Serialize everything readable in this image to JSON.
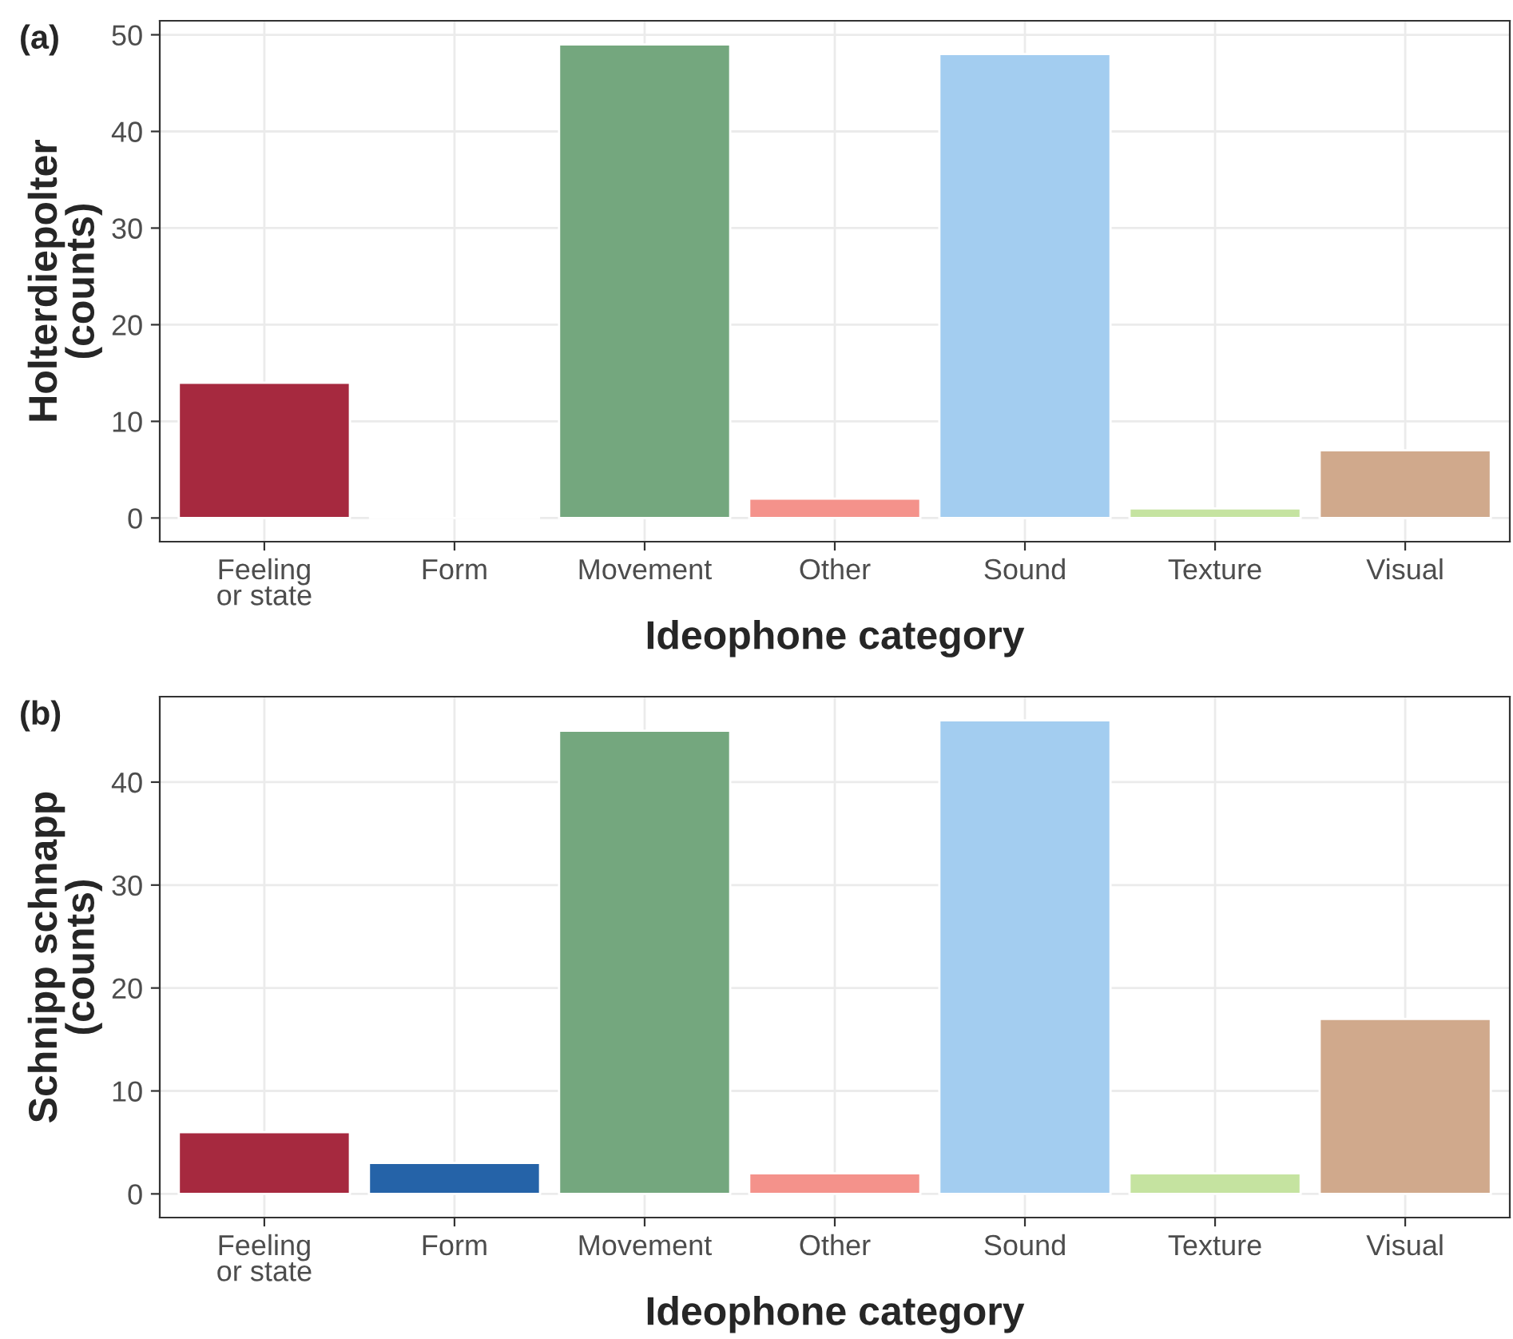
{
  "chart_data": [
    {
      "type": "bar",
      "categories": [
        "Feeling\nor state",
        "Form",
        "Movement",
        "Other",
        "Sound",
        "Texture",
        "Visual"
      ],
      "values": [
        14,
        0,
        49,
        2,
        48,
        1,
        7
      ],
      "colors": [
        "#a6293f",
        null,
        "#74a77e",
        "#f4928b",
        "#a3cdf0",
        "#c5e3a0",
        "#d0a98c"
      ],
      "xlabel": "Ideophone category",
      "ylabel": "Holterdiepolter\n(counts)",
      "ylim": [
        -2.45,
        51.45
      ],
      "yticks": [
        0,
        10,
        20,
        30,
        40,
        50
      ],
      "grid": true,
      "annotations": [
        "(a)"
      ]
    },
    {
      "type": "bar",
      "categories": [
        "Feeling\nor state",
        "Form",
        "Movement",
        "Other",
        "Sound",
        "Texture",
        "Visual"
      ],
      "values": [
        6,
        3,
        45,
        2,
        46,
        2,
        17
      ],
      "colors": [
        "#a6293f",
        "#2563a8",
        "#74a77e",
        "#f4928b",
        "#a3cdf0",
        "#c5e3a0",
        "#d0a98c"
      ],
      "xlabel": "Ideophone category",
      "ylabel": "Schnipp schnapp\n(counts)",
      "ylim": [
        -2.3,
        48.3
      ],
      "yticks": [
        0,
        10,
        20,
        30,
        40
      ],
      "grid": true,
      "annotations": [
        "(b)"
      ]
    }
  ]
}
